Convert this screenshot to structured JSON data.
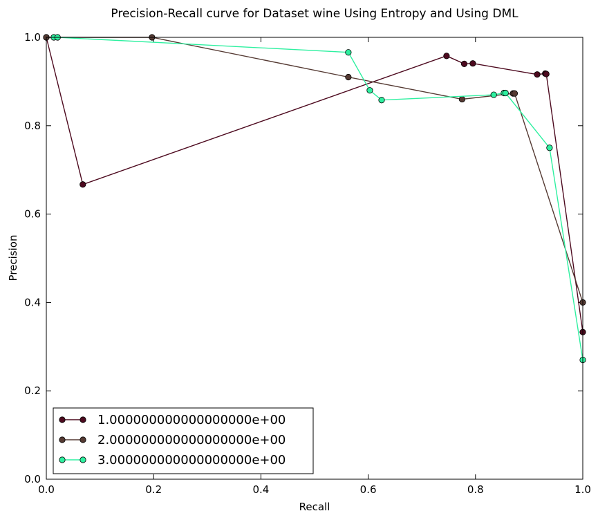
{
  "chart_data": {
    "type": "line",
    "title": "Precision-Recall curve for Dataset wine Using Entropy and Using DML",
    "xlabel": "Recall",
    "ylabel": "Precision",
    "xlim": [
      0.0,
      1.0
    ],
    "ylim": [
      0.0,
      1.0
    ],
    "xticks": [
      "0.0",
      "0.2",
      "0.4",
      "0.6",
      "0.8",
      "1.0"
    ],
    "yticks": [
      "0.0",
      "0.2",
      "0.4",
      "0.6",
      "0.8",
      "1.0"
    ],
    "grid": false,
    "legend_position": "lower-left",
    "series": [
      {
        "name": "1.000000000000000000e+00",
        "color": "#4d0a1f",
        "marker_edge": "#000000",
        "points": [
          [
            0.0,
            1.0
          ],
          [
            0.068,
            0.667
          ],
          [
            0.746,
            0.958
          ],
          [
            0.779,
            0.94
          ],
          [
            0.795,
            0.941
          ],
          [
            0.915,
            0.916
          ],
          [
            0.93,
            0.918
          ],
          [
            0.932,
            0.917
          ],
          [
            1.0,
            0.333
          ]
        ]
      },
      {
        "name": "2.000000000000000000e+00",
        "color": "#553a33",
        "marker_edge": "#000000",
        "points": [
          [
            0.0,
            1.0
          ],
          [
            0.197,
            1.0
          ],
          [
            0.563,
            0.91
          ],
          [
            0.775,
            0.86
          ],
          [
            0.87,
            0.873
          ],
          [
            0.873,
            0.873
          ],
          [
            1.0,
            0.4
          ]
        ]
      },
      {
        "name": "3.000000000000000000e+00",
        "color": "#2ef0a0",
        "marker_edge": "#000000",
        "points": [
          [
            0.014,
            1.0
          ],
          [
            0.021,
            1.0
          ],
          [
            0.563,
            0.966
          ],
          [
            0.603,
            0.88
          ],
          [
            0.625,
            0.858
          ],
          [
            0.834,
            0.87
          ],
          [
            0.853,
            0.874
          ],
          [
            0.856,
            0.874
          ],
          [
            0.938,
            0.75
          ],
          [
            1.0,
            0.27
          ]
        ]
      }
    ]
  }
}
